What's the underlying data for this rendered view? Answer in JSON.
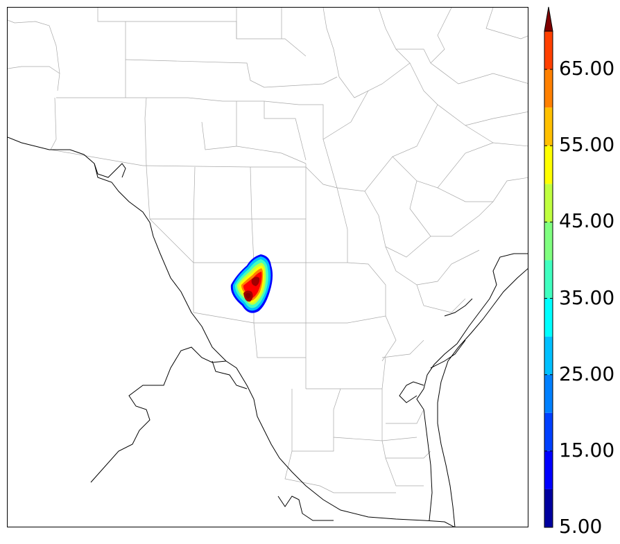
{
  "colorbar": {
    "levels": [
      5,
      10,
      15,
      20,
      25,
      30,
      35,
      40,
      45,
      50,
      55,
      60,
      65,
      70
    ],
    "colors": [
      "#00009f",
      "#0000ff",
      "#0040ff",
      "#0080ff",
      "#00c0ff",
      "#00ffff",
      "#40ffc0",
      "#80ff80",
      "#c0ff40",
      "#ffff00",
      "#ffc000",
      "#ff8000",
      "#ff4000",
      "#ff0000",
      "#800000"
    ],
    "extend_color": "#800000",
    "tick_labels": [
      "5.00",
      "15.00",
      "25.00",
      "35.00",
      "45.00",
      "55.00",
      "65.00"
    ]
  },
  "map": {
    "background": "#ffffff",
    "county_line_color": "#a0a0a0",
    "border_color": "#000000"
  }
}
